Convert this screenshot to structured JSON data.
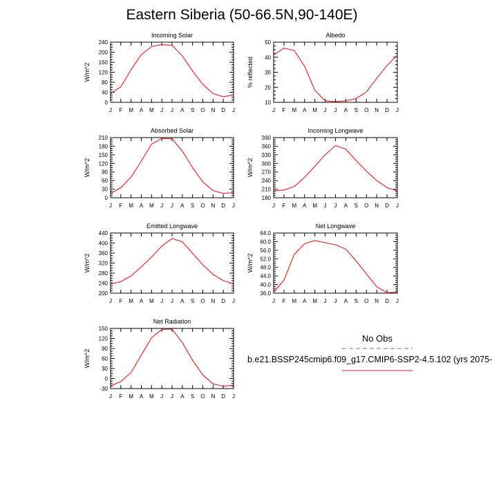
{
  "title": "Eastern Siberia (50-66.5N,90-140E)",
  "legend": {
    "obs_label": "No Obs",
    "model_label": "b.e21.BSSP245cmip6.f09_g17.CMIP6-SSP2-4.5.102 (yrs 2075-",
    "obs_color": "#6a6ae6",
    "model_color": "#e31a1c"
  },
  "months": [
    "J",
    "F",
    "M",
    "A",
    "M",
    "J",
    "J",
    "A",
    "S",
    "O",
    "N",
    "D",
    "J"
  ],
  "chart_data": [
    {
      "type": "line",
      "title": "Incoming Solar",
      "ylabel": "W/m^2",
      "ylim": [
        0,
        240
      ],
      "yticks": [
        "0",
        "40",
        "80",
        "120",
        "160",
        "200",
        "240"
      ],
      "series": [
        {
          "values": [
            35,
            62,
            130,
            190,
            222,
            230,
            228,
            185,
            125,
            72,
            35,
            22,
            30
          ]
        }
      ]
    },
    {
      "type": "line",
      "title": "Albedo",
      "ylabel": "% reflected",
      "ylim": [
        10,
        50
      ],
      "yticks": [
        "10",
        "20",
        "30",
        "40",
        "50"
      ],
      "series": [
        {
          "values": [
            41.5,
            46,
            44.5,
            34,
            18,
            11,
            10.5,
            11,
            12.5,
            17,
            26,
            34.5,
            41.5
          ]
        }
      ]
    },
    {
      "type": "line",
      "title": "Absorbed Solar",
      "ylabel": "W/m^2",
      "ylim": [
        0,
        210
      ],
      "yticks": [
        "0",
        "30",
        "60",
        "90",
        "120",
        "150",
        "180",
        "210"
      ],
      "series": [
        {
          "values": [
            15,
            35,
            72,
            128,
            187,
            207,
            206,
            163,
            105,
            55,
            25,
            15,
            18
          ]
        }
      ]
    },
    {
      "type": "line",
      "title": "Incoming Longwave",
      "ylabel": "W/m^2",
      "ylim": [
        180,
        390
      ],
      "yticks": [
        "180",
        "210",
        "240",
        "270",
        "300",
        "330",
        "360",
        "390"
      ],
      "series": [
        {
          "values": [
            204,
            207,
            219,
            251,
            290,
            330,
            362,
            350,
            310,
            273,
            240,
            215,
            204
          ]
        }
      ]
    },
    {
      "type": "line",
      "title": "Emitted Longwave",
      "ylabel": "W/m^2",
      "ylim": [
        200,
        440
      ],
      "yticks": [
        "200",
        "240",
        "280",
        "320",
        "360",
        "400",
        "440"
      ],
      "series": [
        {
          "values": [
            237,
            246,
            269,
            305,
            344,
            388,
            418,
            405,
            359,
            313,
            275,
            250,
            237
          ]
        }
      ]
    },
    {
      "type": "line",
      "title": "Net Longwave",
      "ylabel": "W/m^2",
      "ylim": [
        36,
        64
      ],
      "yticks": [
        "36.0",
        "40.0",
        "44.0",
        "48.0",
        "52.0",
        "56.0",
        "60.0",
        "64.0"
      ],
      "series": [
        {
          "values": [
            36.5,
            42,
            54,
            59,
            60.5,
            59.5,
            58.5,
            56.5,
            51,
            45,
            39,
            36.2,
            36.5
          ]
        }
      ]
    },
    {
      "type": "line",
      "title": "Net Radiation",
      "ylabel": "W/m^2",
      "ylim": [
        -30,
        150
      ],
      "yticks": [
        "-30",
        "0",
        "30",
        "60",
        "90",
        "120",
        "150"
      ],
      "series": [
        {
          "values": [
            -22,
            -9,
            18,
            70,
            122,
            147,
            148,
            108,
            55,
            11,
            -16,
            -23,
            -20
          ]
        }
      ]
    }
  ]
}
